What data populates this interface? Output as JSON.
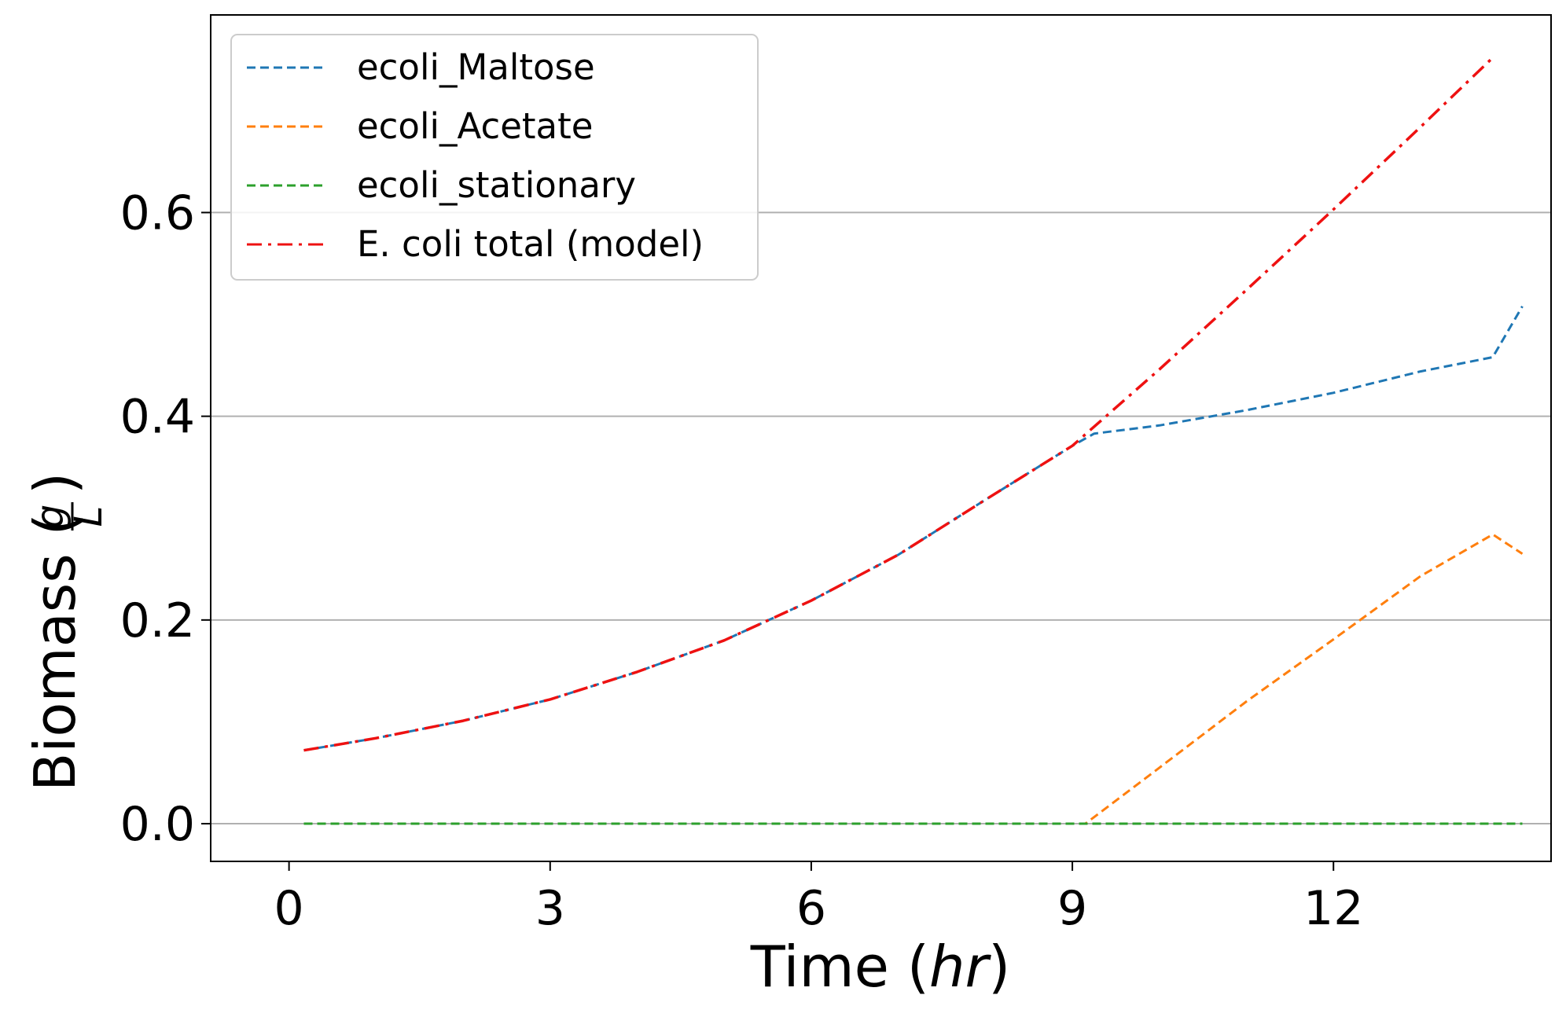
{
  "chart_data": {
    "type": "line",
    "xlabel_text": "Time (",
    "xlabel_italic": "hr",
    "xlabel_close": ")",
    "ylabel_text": "Biomass (",
    "ylabel_num": "g",
    "ylabel_den": "L",
    "ylabel_close": ")",
    "xlim": [
      -0.9,
      14.5
    ],
    "ylim": [
      -0.037,
      0.794
    ],
    "x_ticks": [
      0,
      3,
      6,
      9,
      12
    ],
    "x_tick_labels": [
      "0",
      "3",
      "6",
      "9",
      "12"
    ],
    "y_ticks": [
      0.0,
      0.2,
      0.4,
      0.6
    ],
    "y_tick_labels": [
      "0.0",
      "0.2",
      "0.4",
      "0.6"
    ],
    "grid": "horizontal",
    "legend_position": "top-left",
    "series": [
      {
        "name": "ecoli_Maltose",
        "color": "#1f77b4",
        "style": "dashed",
        "points": [
          [
            0.17,
            0.072
          ],
          [
            1.0,
            0.084
          ],
          [
            2.0,
            0.101
          ],
          [
            3.0,
            0.122
          ],
          [
            4.0,
            0.149
          ],
          [
            5.0,
            0.18
          ],
          [
            6.0,
            0.219
          ],
          [
            7.0,
            0.264
          ],
          [
            8.0,
            0.318
          ],
          [
            9.0,
            0.371
          ],
          [
            9.25,
            0.383
          ],
          [
            10.0,
            0.391
          ],
          [
            11.0,
            0.406
          ],
          [
            12.0,
            0.423
          ],
          [
            13.0,
            0.444
          ],
          [
            13.83,
            0.458
          ],
          [
            14.17,
            0.508
          ]
        ]
      },
      {
        "name": "ecoli_Acetate",
        "color": "#ff7f0e",
        "style": "dashed",
        "points": [
          [
            0.17,
            0.0
          ],
          [
            9.15,
            0.0
          ],
          [
            10.0,
            0.055
          ],
          [
            11.0,
            0.12
          ],
          [
            12.0,
            0.181
          ],
          [
            13.0,
            0.243
          ],
          [
            13.83,
            0.284
          ],
          [
            14.17,
            0.265
          ]
        ]
      },
      {
        "name": "ecoli_stationary",
        "color": "#2ca02c",
        "style": "dashed",
        "points": [
          [
            0.17,
            0.0
          ],
          [
            14.17,
            0.0
          ]
        ]
      },
      {
        "name": "E. coli total (model)",
        "color": "#ee1111",
        "style": "dashdot",
        "points": [
          [
            0.17,
            0.072
          ],
          [
            1.0,
            0.084
          ],
          [
            2.0,
            0.101
          ],
          [
            3.0,
            0.122
          ],
          [
            4.0,
            0.149
          ],
          [
            5.0,
            0.18
          ],
          [
            6.0,
            0.219
          ],
          [
            7.0,
            0.264
          ],
          [
            8.0,
            0.318
          ],
          [
            9.0,
            0.371
          ],
          [
            10.0,
            0.446
          ],
          [
            11.0,
            0.524
          ],
          [
            12.0,
            0.603
          ],
          [
            13.0,
            0.684
          ],
          [
            13.83,
            0.752
          ]
        ]
      }
    ]
  }
}
